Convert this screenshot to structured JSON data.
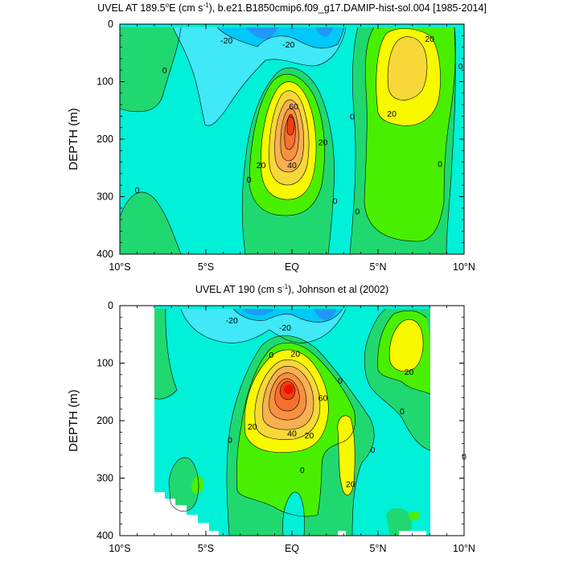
{
  "colors": {
    "cyan_base": "#00f0d8",
    "light_blue": "#40e8f8",
    "mid_blue": "#00c8f8",
    "dark_blue": "#2098f8",
    "light_green": "#20d870",
    "bright_green": "#48f000",
    "yellow": "#f8f800",
    "gold": "#f8d838",
    "light_orange": "#f8b050",
    "orange": "#f89040",
    "dark_orange": "#f87030",
    "red": "#f04010"
  },
  "chart_data": [
    {
      "type": "filled_contour",
      "title_parts": [
        "UVEL AT 189.5",
        "o",
        "E (cm s",
        "-1",
        "), b.e21.B1850cmip6.f09_g17.DAMIP-hist-sol.004 [1985-2014]"
      ],
      "xlabel": "",
      "ylabel": "DEPTH (m)",
      "xlim": [
        -10,
        10
      ],
      "ylim": [
        400,
        0
      ],
      "xticks": [
        {
          "value": -10,
          "label": "10°S"
        },
        {
          "value": -5,
          "label": "5°S"
        },
        {
          "value": 0,
          "label": "EQ"
        },
        {
          "value": 5,
          "label": "5°N"
        },
        {
          "value": 10,
          "label": "10°N"
        }
      ],
      "yticks": [
        {
          "value": 0,
          "label": "0"
        },
        {
          "value": 100,
          "label": "100"
        },
        {
          "value": 200,
          "label": "200"
        },
        {
          "value": 300,
          "label": "300"
        },
        {
          "value": 400,
          "label": "400"
        }
      ],
      "contour_interval": 10,
      "max_value_core": {
        "lat": 0,
        "depth": 160,
        "value": 70
      },
      "contour_labels": [
        {
          "text": "-20",
          "lat": -3.8,
          "depth": 28
        },
        {
          "text": "-20",
          "lat": -0.2,
          "depth": 35
        },
        {
          "text": "20",
          "lat": 8.0,
          "depth": 25
        },
        {
          "text": "0",
          "lat": -7.4,
          "depth": 80
        },
        {
          "text": "0",
          "lat": 9.8,
          "depth": 73
        },
        {
          "text": "60",
          "lat": 0.1,
          "depth": 143
        },
        {
          "text": "0",
          "lat": 3.5,
          "depth": 160
        },
        {
          "text": "20",
          "lat": 5.8,
          "depth": 155
        },
        {
          "text": "20",
          "lat": 1.8,
          "depth": 205
        },
        {
          "text": "40",
          "lat": 0,
          "depth": 245
        },
        {
          "text": "20",
          "lat": -1.8,
          "depth": 245
        },
        {
          "text": "0",
          "lat": -2.5,
          "depth": 270
        },
        {
          "text": "0",
          "lat": -9.0,
          "depth": 288
        },
        {
          "text": "0",
          "lat": 2.5,
          "depth": 307
        },
        {
          "text": "0",
          "lat": 3.8,
          "depth": 325
        },
        {
          "text": "0",
          "lat": 8.6,
          "depth": 243
        }
      ]
    },
    {
      "type": "filled_contour",
      "title_parts": [
        "UVEL AT 190 (cm s",
        "-1",
        "), Johnson et al (2002)"
      ],
      "xlabel": "",
      "ylabel": "DEPTH (m)",
      "xlim": [
        -10,
        10
      ],
      "ylim": [
        400,
        0
      ],
      "data_lat_range": [
        -8.2,
        8.2
      ],
      "xticks": [
        {
          "value": -10,
          "label": "10°S"
        },
        {
          "value": -5,
          "label": "5°S"
        },
        {
          "value": 0,
          "label": "EQ"
        },
        {
          "value": 5,
          "label": "5°N"
        },
        {
          "value": 10,
          "label": "10°N"
        }
      ],
      "yticks": [
        {
          "value": 0,
          "label": "0"
        },
        {
          "value": 100,
          "label": "100"
        },
        {
          "value": 200,
          "label": "200"
        },
        {
          "value": 300,
          "label": "300"
        },
        {
          "value": 400,
          "label": "400"
        }
      ],
      "contour_interval": 10,
      "max_value_core": {
        "lat": 0,
        "depth": 150,
        "value": 80
      },
      "contour_labels": [
        {
          "text": "-20",
          "lat": -3.5,
          "depth": 25
        },
        {
          "text": "-20",
          "lat": -0.4,
          "depth": 38
        },
        {
          "text": "0",
          "lat": -1.2,
          "depth": 85
        },
        {
          "text": "20",
          "lat": 0.2,
          "depth": 83
        },
        {
          "text": "20",
          "lat": 6.8,
          "depth": 115
        },
        {
          "text": "0",
          "lat": 2.8,
          "depth": 130
        },
        {
          "text": "60",
          "lat": 1.8,
          "depth": 160
        },
        {
          "text": "0",
          "lat": 6.4,
          "depth": 183
        },
        {
          "text": "20",
          "lat": -2.3,
          "depth": 210
        },
        {
          "text": "40",
          "lat": 0,
          "depth": 222
        },
        {
          "text": "20",
          "lat": 1.0,
          "depth": 225
        },
        {
          "text": "0",
          "lat": -3.6,
          "depth": 233
        },
        {
          "text": "0",
          "lat": 4.7,
          "depth": 250
        },
        {
          "text": "0",
          "lat": 0.6,
          "depth": 285
        },
        {
          "text": "0",
          "lat": 10.0,
          "depth": 262
        },
        {
          "text": "20",
          "lat": 3.4,
          "depth": 310
        }
      ]
    }
  ]
}
